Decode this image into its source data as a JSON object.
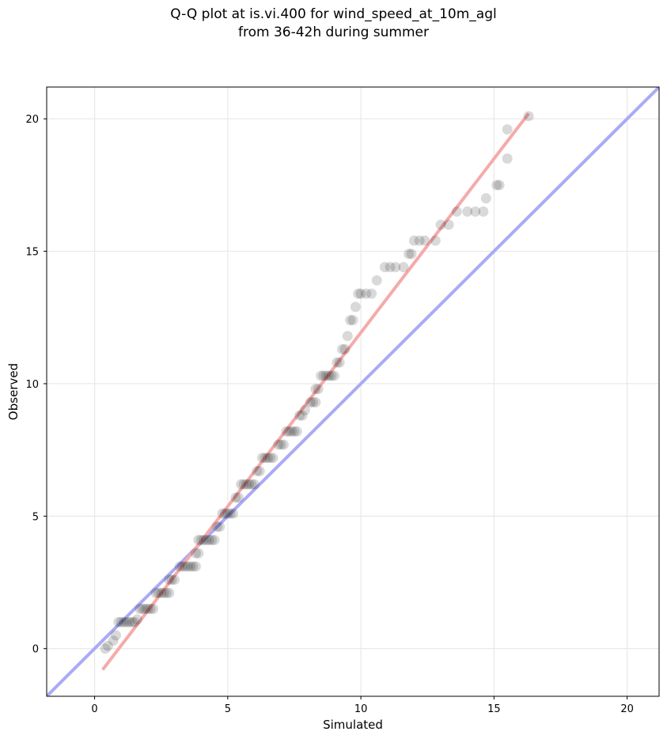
{
  "chart_data": {
    "type": "scatter",
    "title_line1": "Q-Q plot at is.vi.400 for wind_speed_at_10m_agl",
    "title_line2": "from 36-42h during summer",
    "xlabel": "Simulated",
    "ylabel": "Observed",
    "xlim": [
      -1.8,
      21.2
    ],
    "ylim": [
      -1.8,
      21.2
    ],
    "xticks": [
      0,
      5,
      10,
      15,
      20
    ],
    "yticks": [
      0,
      5,
      10,
      15,
      20
    ],
    "grid": true,
    "colors": {
      "points": "#000000",
      "identity_line": "#aaaaf5",
      "fit_line": "#f5aaaa",
      "grid": "#e8e8e8"
    },
    "identity_line": {
      "from": [
        -1.8,
        -1.8
      ],
      "to": [
        21.2,
        21.2
      ]
    },
    "fit_line": {
      "from": [
        0.3,
        -0.8
      ],
      "to": [
        16.3,
        20.2
      ]
    },
    "points": [
      [
        0.4,
        0.0
      ],
      [
        0.5,
        0.1
      ],
      [
        0.7,
        0.3
      ],
      [
        0.8,
        0.5
      ],
      [
        0.9,
        1.0
      ],
      [
        1.0,
        1.0
      ],
      [
        1.1,
        1.0
      ],
      [
        1.2,
        1.0
      ],
      [
        1.3,
        1.0
      ],
      [
        1.4,
        1.0
      ],
      [
        1.5,
        1.0
      ],
      [
        1.6,
        1.1
      ],
      [
        1.7,
        1.5
      ],
      [
        1.8,
        1.5
      ],
      [
        1.9,
        1.5
      ],
      [
        2.0,
        1.5
      ],
      [
        2.1,
        1.5
      ],
      [
        2.2,
        1.5
      ],
      [
        2.3,
        2.1
      ],
      [
        2.4,
        2.1
      ],
      [
        2.5,
        2.1
      ],
      [
        2.6,
        2.1
      ],
      [
        2.7,
        2.1
      ],
      [
        2.8,
        2.1
      ],
      [
        2.8,
        2.6
      ],
      [
        2.9,
        2.6
      ],
      [
        3.0,
        2.6
      ],
      [
        3.2,
        3.1
      ],
      [
        3.3,
        3.1
      ],
      [
        3.4,
        3.1
      ],
      [
        3.5,
        3.1
      ],
      [
        3.6,
        3.1
      ],
      [
        3.7,
        3.1
      ],
      [
        3.8,
        3.1
      ],
      [
        3.8,
        3.6
      ],
      [
        3.9,
        3.6
      ],
      [
        3.9,
        4.1
      ],
      [
        4.0,
        4.1
      ],
      [
        4.1,
        4.1
      ],
      [
        4.2,
        4.1
      ],
      [
        4.3,
        4.1
      ],
      [
        4.4,
        4.1
      ],
      [
        4.5,
        4.1
      ],
      [
        4.6,
        4.6
      ],
      [
        4.7,
        4.6
      ],
      [
        4.8,
        5.1
      ],
      [
        4.9,
        5.1
      ],
      [
        5.0,
        5.1
      ],
      [
        5.1,
        5.1
      ],
      [
        5.2,
        5.1
      ],
      [
        5.3,
        5.7
      ],
      [
        5.4,
        5.7
      ],
      [
        5.5,
        6.2
      ],
      [
        5.6,
        6.2
      ],
      [
        5.7,
        6.2
      ],
      [
        5.8,
        6.2
      ],
      [
        5.9,
        6.2
      ],
      [
        6.0,
        6.2
      ],
      [
        6.1,
        6.7
      ],
      [
        6.2,
        6.7
      ],
      [
        6.3,
        7.2
      ],
      [
        6.4,
        7.2
      ],
      [
        6.5,
        7.2
      ],
      [
        6.6,
        7.2
      ],
      [
        6.7,
        7.2
      ],
      [
        6.9,
        7.7
      ],
      [
        7.0,
        7.7
      ],
      [
        7.1,
        7.7
      ],
      [
        7.2,
        8.2
      ],
      [
        7.3,
        8.2
      ],
      [
        7.4,
        8.2
      ],
      [
        7.5,
        8.2
      ],
      [
        7.6,
        8.2
      ],
      [
        7.7,
        8.8
      ],
      [
        7.8,
        8.8
      ],
      [
        7.9,
        9.0
      ],
      [
        8.1,
        9.3
      ],
      [
        8.2,
        9.3
      ],
      [
        8.3,
        9.3
      ],
      [
        8.3,
        9.8
      ],
      [
        8.4,
        9.8
      ],
      [
        8.5,
        10.3
      ],
      [
        8.6,
        10.3
      ],
      [
        8.7,
        10.3
      ],
      [
        8.8,
        10.3
      ],
      [
        8.9,
        10.3
      ],
      [
        9.0,
        10.3
      ],
      [
        9.1,
        10.8
      ],
      [
        9.2,
        10.8
      ],
      [
        9.3,
        11.3
      ],
      [
        9.4,
        11.3
      ],
      [
        9.5,
        11.8
      ],
      [
        9.6,
        12.4
      ],
      [
        9.7,
        12.4
      ],
      [
        9.8,
        12.9
      ],
      [
        9.9,
        13.4
      ],
      [
        10.0,
        13.4
      ],
      [
        10.2,
        13.4
      ],
      [
        10.4,
        13.4
      ],
      [
        10.6,
        13.9
      ],
      [
        10.9,
        14.4
      ],
      [
        11.1,
        14.4
      ],
      [
        11.3,
        14.4
      ],
      [
        11.6,
        14.4
      ],
      [
        11.8,
        14.9
      ],
      [
        11.9,
        14.9
      ],
      [
        12.0,
        15.4
      ],
      [
        12.2,
        15.4
      ],
      [
        12.4,
        15.4
      ],
      [
        12.8,
        15.4
      ],
      [
        13.0,
        16.0
      ],
      [
        13.3,
        16.0
      ],
      [
        13.6,
        16.5
      ],
      [
        14.0,
        16.5
      ],
      [
        14.3,
        16.5
      ],
      [
        14.6,
        16.5
      ],
      [
        14.7,
        17.0
      ],
      [
        15.1,
        17.5
      ],
      [
        15.2,
        17.5
      ],
      [
        15.5,
        18.5
      ],
      [
        15.5,
        19.6
      ],
      [
        16.3,
        20.1
      ]
    ]
  }
}
